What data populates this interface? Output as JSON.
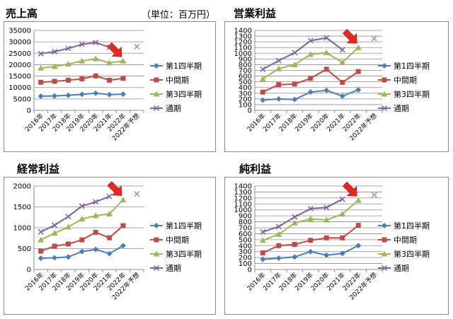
{
  "unit_note": "（単位：百万円）",
  "chart_data": [
    {
      "type": "line",
      "title": "売上高",
      "categories": [
        "2016年",
        "2017年",
        "2018年",
        "2019年",
        "2020年",
        "2021年",
        "2022年",
        "2022年予想"
      ],
      "ylim": [
        0,
        35000
      ],
      "yticks": [
        0,
        5000,
        10000,
        15000,
        20000,
        25000,
        30000,
        35000
      ],
      "grid": true,
      "legend": "right",
      "series": [
        {
          "name": "第1四半期",
          "color": "#4a7ebb",
          "marker": "diamond",
          "values": [
            6200,
            6300,
            6600,
            7000,
            7500,
            6900,
            7100,
            null
          ]
        },
        {
          "name": "中間期",
          "color": "#be4b48",
          "marker": "square",
          "values": [
            12300,
            12700,
            13200,
            13800,
            15100,
            13200,
            14000,
            null
          ]
        },
        {
          "name": "第3四半期",
          "color": "#98b954",
          "marker": "triangle",
          "values": [
            18500,
            19200,
            20300,
            21600,
            22600,
            20800,
            21600,
            null
          ]
        },
        {
          "name": "通期",
          "color": "#7d60a0",
          "marker": "x",
          "values": [
            24800,
            25700,
            27100,
            28900,
            29700,
            27600,
            null,
            27900
          ]
        }
      ]
    },
    {
      "type": "line",
      "title": "営業利益",
      "categories": [
        "2016年",
        "2017年",
        "2018年",
        "2019年",
        "2020年",
        "2021年",
        "2022年",
        "2022年予想"
      ],
      "ylim": [
        0,
        1400
      ],
      "yticks": [
        0,
        100,
        200,
        300,
        400,
        500,
        600,
        700,
        800,
        900,
        1000,
        1100,
        1200,
        1300,
        1400
      ],
      "grid": true,
      "legend": "right",
      "series": [
        {
          "name": "第1四半期",
          "color": "#4a7ebb",
          "marker": "diamond",
          "values": [
            180,
            200,
            190,
            320,
            350,
            250,
            360,
            null
          ]
        },
        {
          "name": "中間期",
          "color": "#be4b48",
          "marker": "square",
          "values": [
            320,
            450,
            460,
            560,
            720,
            490,
            680,
            null
          ]
        },
        {
          "name": "第3四半期",
          "color": "#98b954",
          "marker": "triangle",
          "values": [
            550,
            730,
            800,
            980,
            1010,
            840,
            1100,
            null
          ]
        },
        {
          "name": "通期",
          "color": "#7d60a0",
          "marker": "x",
          "values": [
            720,
            870,
            1010,
            1220,
            1270,
            1060,
            null,
            1260
          ]
        }
      ]
    },
    {
      "type": "line",
      "title": "経常利益",
      "categories": [
        "2016年",
        "2017年",
        "2018年",
        "2019年",
        "2020年",
        "2021年",
        "2022年",
        "2022年予想"
      ],
      "ylim": [
        0,
        2000
      ],
      "yticks": [
        0,
        500,
        1000,
        1500,
        2000
      ],
      "grid": true,
      "legend": "right",
      "series": [
        {
          "name": "第1四半期",
          "color": "#4a7ebb",
          "marker": "diamond",
          "values": [
            270,
            280,
            300,
            430,
            480,
            380,
            570,
            null
          ]
        },
        {
          "name": "中間期",
          "color": "#be4b48",
          "marker": "square",
          "values": [
            440,
            560,
            610,
            710,
            890,
            760,
            1050,
            null
          ]
        },
        {
          "name": "第3四半期",
          "color": "#98b954",
          "marker": "triangle",
          "values": [
            710,
            870,
            1020,
            1210,
            1290,
            1330,
            1670,
            null
          ]
        },
        {
          "name": "通期",
          "color": "#7d60a0",
          "marker": "x",
          "values": [
            900,
            1060,
            1270,
            1520,
            1620,
            1750,
            null,
            1810
          ]
        }
      ]
    },
    {
      "type": "line",
      "title": "純利益",
      "categories": [
        "2016年",
        "2017年",
        "2018年",
        "2019年",
        "2020年",
        "2021年",
        "2022年",
        "2022年予想"
      ],
      "ylim": [
        0,
        1400
      ],
      "yticks": [
        0,
        100,
        200,
        300,
        400,
        500,
        600,
        700,
        800,
        900,
        1000,
        1100,
        1200,
        1300,
        1400
      ],
      "grid": true,
      "legend": "right",
      "series": [
        {
          "name": "第1四半期",
          "color": "#4a7ebb",
          "marker": "diamond",
          "values": [
            170,
            190,
            210,
            300,
            240,
            270,
            400,
            null
          ]
        },
        {
          "name": "中間期",
          "color": "#be4b48",
          "marker": "square",
          "values": [
            280,
            400,
            420,
            490,
            530,
            530,
            740,
            null
          ]
        },
        {
          "name": "第3四半期",
          "color": "#98b954",
          "marker": "triangle",
          "values": [
            490,
            590,
            780,
            850,
            830,
            930,
            1160,
            null
          ]
        },
        {
          "name": "通期",
          "color": "#7d60a0",
          "marker": "x",
          "values": [
            630,
            720,
            880,
            1020,
            1040,
            1180,
            null,
            1250
          ]
        }
      ]
    }
  ]
}
